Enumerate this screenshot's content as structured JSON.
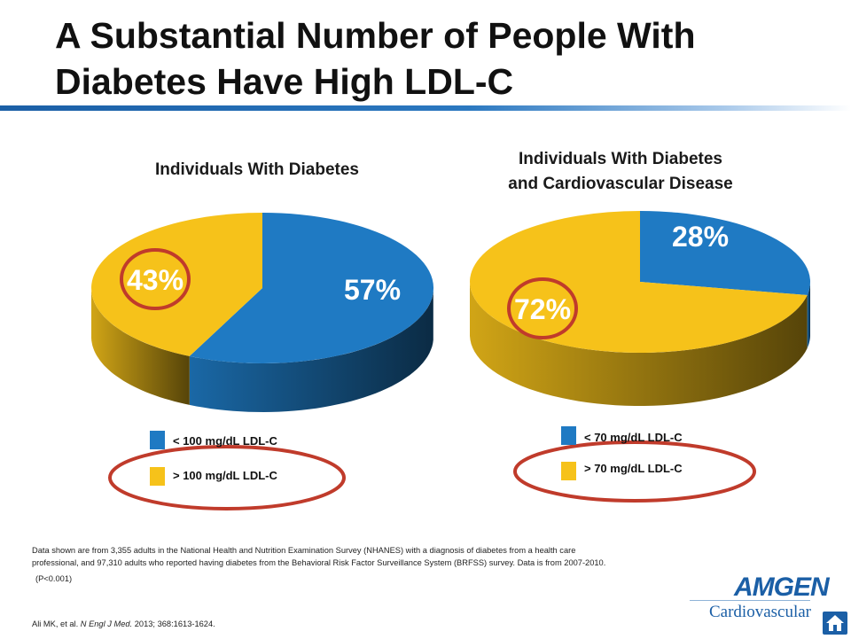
{
  "slide": {
    "title_line1": "A Substantial Number of People With",
    "title_line2": "Diabetes Have High LDL-C"
  },
  "colors": {
    "blue": "#1f7ac3",
    "yellow": "#f6c21a",
    "highlight_ring": "#c03b2b",
    "title_rule": "#1b5fa6"
  },
  "chart_data": [
    {
      "type": "pie",
      "title": "Individuals With Diabetes",
      "slices": [
        {
          "label": "< 100 mg/dL LDL-C",
          "value": 57,
          "display": "57%",
          "color": "#1f7ac3"
        },
        {
          "label": "> 100 mg/dL LDL-C",
          "value": 43,
          "display": "43%",
          "color": "#f6c21a"
        }
      ],
      "highlighted": "43%",
      "legend": [
        {
          "label": "< 100 mg/dL LDL-C",
          "color": "#1f7ac3"
        },
        {
          "label": "> 100 mg/dL LDL-C",
          "color": "#f6c21a"
        }
      ]
    },
    {
      "type": "pie",
      "title_line1": "Individuals With Diabetes",
      "title_line2": "and Cardiovascular Disease",
      "slices": [
        {
          "label": "< 70 mg/dL LDL-C",
          "value": 28,
          "display": "28%",
          "color": "#1f7ac3"
        },
        {
          "label": "> 70 mg/dL LDL-C",
          "value": 72,
          "display": "72%",
          "color": "#f6c21a"
        }
      ],
      "highlighted": "72%",
      "legend": [
        {
          "label": "< 70 mg/dL LDL-C",
          "color": "#1f7ac3"
        },
        {
          "label": "> 70 mg/dL LDL-C",
          "color": "#f6c21a"
        }
      ]
    }
  ],
  "footnote": {
    "line1": "Data shown are from 3,355 adults in the National Health and Nutrition Examination Survey (NHANES) with a diagnosis of diabetes from a health care",
    "line2": "professional, and 97,310 adults who reported having diabetes from the Behavioral Risk Factor Surveillance System (BRFSS) survey. Data is from 2007-2010.",
    "pvalue": "(P<0.001)",
    "citation_pre": "Ali MK, et al. ",
    "citation_journal": "N Engl J Med.",
    "citation_post": " 2013; 368:1613-1624."
  },
  "logo": {
    "name": "AMGEN",
    "subtitle": "Cardiovascular",
    "home_icon": "home-icon"
  }
}
